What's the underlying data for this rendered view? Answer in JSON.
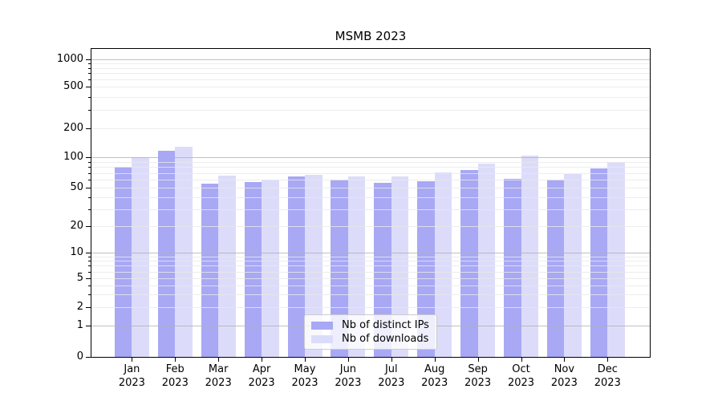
{
  "chart_data": {
    "type": "bar",
    "title": "MSMB 2023",
    "yscale": "symlog",
    "grid": true,
    "ylim": [
      0,
      1270
    ],
    "ytick_labels": [
      "1000",
      "500",
      "200",
      "100",
      "50",
      "20",
      "10",
      "5",
      "2",
      "1",
      "0"
    ],
    "ytick_values": [
      1000,
      500,
      200,
      100,
      50,
      20,
      10,
      5,
      2,
      1,
      0
    ],
    "x_ticks": [
      {
        "month": "Jan",
        "year": "2023"
      },
      {
        "month": "Feb",
        "year": "2023"
      },
      {
        "month": "Mar",
        "year": "2023"
      },
      {
        "month": "Apr",
        "year": "2023"
      },
      {
        "month": "May",
        "year": "2023"
      },
      {
        "month": "Jun",
        "year": "2023"
      },
      {
        "month": "Jul",
        "year": "2023"
      },
      {
        "month": "Aug",
        "year": "2023"
      },
      {
        "month": "Sep",
        "year": "2023"
      },
      {
        "month": "Oct",
        "year": "2023"
      },
      {
        "month": "Nov",
        "year": "2023"
      },
      {
        "month": "Dec",
        "year": "2023"
      }
    ],
    "series": [
      {
        "name": "Nb of distinct IPs",
        "color": "#a8a8f5",
        "values": [
          80,
          117,
          55,
          57,
          65,
          60,
          56,
          58,
          75,
          61,
          60,
          77
        ]
      },
      {
        "name": "Nb of downloads",
        "color": "#dcdcfa",
        "values": [
          100,
          127,
          66,
          60,
          67,
          65,
          65,
          71,
          87,
          103,
          68,
          90
        ]
      }
    ],
    "legend": {
      "position": "lower center"
    }
  }
}
